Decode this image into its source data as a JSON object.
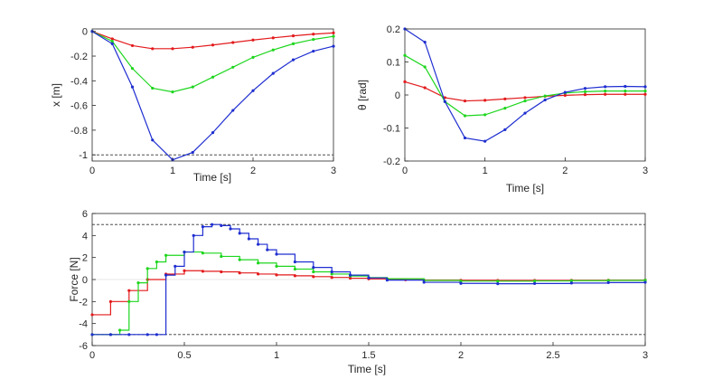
{
  "chart_data": [
    {
      "type": "line",
      "panel": "x",
      "xlabel": "Time [s]",
      "ylabel": "x [m]",
      "xlim": [
        0,
        3
      ],
      "ylim": [
        -1.05,
        0.02
      ],
      "xticks": [
        "0",
        "1",
        "2",
        "3"
      ],
      "yticks": [
        "0",
        "-0.2",
        "-0.4",
        "-0.6",
        "-0.8",
        "-1"
      ],
      "reference_line": -1,
      "series": [
        {
          "name": "red",
          "color": "#e31a1c",
          "x": [
            0,
            0.25,
            0.5,
            0.75,
            1.0,
            1.25,
            1.5,
            1.75,
            2.0,
            2.25,
            2.5,
            2.75,
            3.0
          ],
          "y": [
            0,
            -0.06,
            -0.115,
            -0.14,
            -0.14,
            -0.128,
            -0.11,
            -0.09,
            -0.07,
            -0.052,
            -0.036,
            -0.022,
            -0.012
          ]
        },
        {
          "name": "green",
          "color": "#1ed61e",
          "x": [
            0,
            0.25,
            0.5,
            0.75,
            1.0,
            1.25,
            1.5,
            1.75,
            2.0,
            2.25,
            2.5,
            2.75,
            3.0
          ],
          "y": [
            0,
            -0.08,
            -0.3,
            -0.46,
            -0.49,
            -0.45,
            -0.37,
            -0.29,
            -0.21,
            -0.15,
            -0.1,
            -0.065,
            -0.04
          ]
        },
        {
          "name": "blue",
          "color": "#1f2ed0",
          "x": [
            0,
            0.25,
            0.5,
            0.75,
            1.0,
            1.25,
            1.5,
            1.75,
            2.0,
            2.25,
            2.5,
            2.75,
            3.0
          ],
          "y": [
            0,
            -0.1,
            -0.45,
            -0.88,
            -1.04,
            -0.98,
            -0.82,
            -0.64,
            -0.48,
            -0.34,
            -0.23,
            -0.16,
            -0.12
          ]
        }
      ]
    },
    {
      "type": "line",
      "panel": "theta",
      "xlabel": "Time [s]",
      "ylabel": "θ [rad]",
      "xlim": [
        0,
        3
      ],
      "ylim": [
        -0.2,
        0.2
      ],
      "xticks": [
        "0",
        "1",
        "2",
        "3"
      ],
      "yticks": [
        "0.2",
        "0.1",
        "0",
        "-0.1",
        "-0.2"
      ],
      "series": [
        {
          "name": "red",
          "color": "#e31a1c",
          "x": [
            0,
            0.25,
            0.5,
            0.75,
            1.0,
            1.25,
            1.5,
            1.75,
            2.0,
            2.25,
            2.5,
            2.75,
            3.0
          ],
          "y": [
            0.04,
            0.022,
            -0.008,
            -0.018,
            -0.016,
            -0.012,
            -0.008,
            -0.004,
            -0.001,
            0.001,
            0.002,
            0.002,
            0.002
          ]
        },
        {
          "name": "green",
          "color": "#1ed61e",
          "x": [
            0,
            0.25,
            0.5,
            0.75,
            1.0,
            1.25,
            1.5,
            1.75,
            2.0,
            2.25,
            2.5,
            2.75,
            3.0
          ],
          "y": [
            0.12,
            0.085,
            -0.02,
            -0.063,
            -0.06,
            -0.04,
            -0.018,
            -0.003,
            0.006,
            0.01,
            0.012,
            0.012,
            0.012
          ]
        },
        {
          "name": "blue",
          "color": "#1f2ed0",
          "x": [
            0,
            0.25,
            0.5,
            0.75,
            1.0,
            1.25,
            1.5,
            1.75,
            2.0,
            2.25,
            2.5,
            2.75,
            3.0
          ],
          "y": [
            0.2,
            0.16,
            -0.02,
            -0.13,
            -0.14,
            -0.105,
            -0.055,
            -0.015,
            0.008,
            0.02,
            0.025,
            0.026,
            0.025
          ]
        }
      ]
    },
    {
      "type": "step",
      "panel": "force",
      "xlabel": "Time [s]",
      "ylabel": "Force [N]",
      "xlim": [
        0,
        3
      ],
      "ylim": [
        -6,
        6
      ],
      "xticks": [
        "0",
        "0.5",
        "1",
        "1.5",
        "2",
        "2.5",
        "3"
      ],
      "yticks": [
        "6",
        "4",
        "2",
        "0",
        "-2",
        "-4",
        "-6"
      ],
      "limits": [
        5,
        -5
      ],
      "series": [
        {
          "name": "red",
          "color": "#e31a1c",
          "x": [
            0,
            0.1,
            0.2,
            0.3,
            0.4,
            0.5,
            0.6,
            0.7,
            0.8,
            0.9,
            1.0,
            1.1,
            1.2,
            1.3,
            1.4,
            1.5,
            1.6,
            1.7,
            1.8,
            2.0,
            2.2,
            2.4,
            2.6,
            2.8,
            3.0
          ],
          "y": [
            -3.2,
            -2.0,
            -1.0,
            0.0,
            0.5,
            0.8,
            0.75,
            0.7,
            0.6,
            0.5,
            0.42,
            0.34,
            0.26,
            0.19,
            0.12,
            0.06,
            0.02,
            -0.02,
            -0.05,
            -0.07,
            -0.08,
            -0.08,
            -0.07,
            -0.06,
            -0.05
          ]
        },
        {
          "name": "green",
          "color": "#1ed61e",
          "x": [
            0,
            0.1,
            0.15,
            0.2,
            0.25,
            0.3,
            0.35,
            0.4,
            0.5,
            0.6,
            0.7,
            0.8,
            0.9,
            1.0,
            1.1,
            1.2,
            1.3,
            1.4,
            1.5,
            1.6,
            1.8,
            2.0,
            2.2,
            2.4,
            2.6,
            2.8,
            3.0
          ],
          "y": [
            -5,
            -5,
            -4.6,
            -2.0,
            -0.3,
            1.0,
            1.6,
            2.2,
            2.5,
            2.4,
            2.1,
            1.8,
            1.5,
            1.2,
            0.95,
            0.7,
            0.5,
            0.32,
            0.18,
            0.07,
            -0.08,
            -0.14,
            -0.15,
            -0.13,
            -0.1,
            -0.08,
            -0.06
          ]
        },
        {
          "name": "blue",
          "color": "#1f2ed0",
          "x": [
            0,
            0.1,
            0.2,
            0.3,
            0.35,
            0.4,
            0.45,
            0.5,
            0.55,
            0.6,
            0.65,
            0.7,
            0.75,
            0.8,
            0.85,
            0.9,
            0.95,
            1.0,
            1.1,
            1.2,
            1.3,
            1.4,
            1.5,
            1.6,
            1.8,
            2.0,
            2.2,
            2.4,
            2.6,
            2.8,
            3.0
          ],
          "y": [
            -5,
            -5,
            -5,
            -5,
            -5,
            0.4,
            1.2,
            2.5,
            4.0,
            4.8,
            5.0,
            4.9,
            4.6,
            4.2,
            3.7,
            3.2,
            2.7,
            2.3,
            1.6,
            1.1,
            0.7,
            0.4,
            0.15,
            -0.05,
            -0.25,
            -0.35,
            -0.38,
            -0.36,
            -0.32,
            -0.28,
            -0.25
          ]
        }
      ]
    }
  ]
}
